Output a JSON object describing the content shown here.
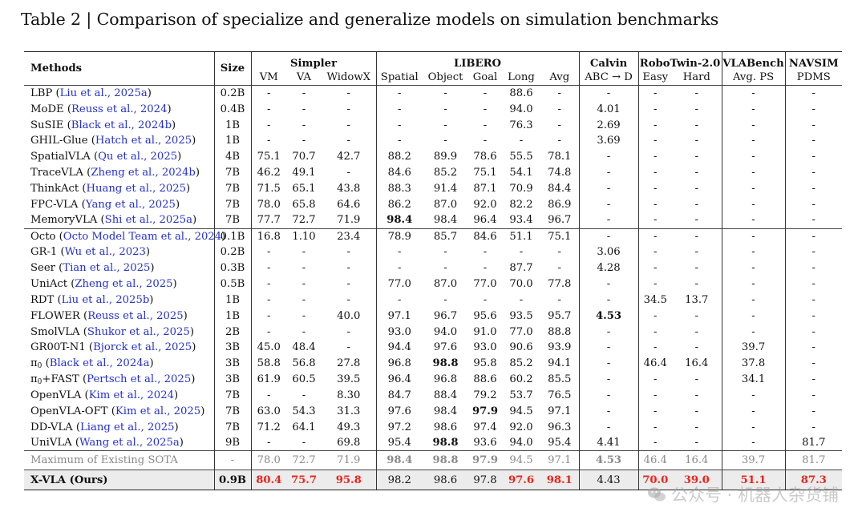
{
  "caption": "Table 2 | Comparison of specialize and generalize models on simulation benchmarks",
  "watermark": "公众号 · 机器人杂货铺",
  "header": {
    "methods": "Methods",
    "size": "Size",
    "groups": [
      "Simpler",
      "LIBERO",
      "Calvin",
      "RoboTwin-2.0",
      "VLABench",
      "NAVSIM"
    ],
    "subcols": [
      "VM",
      "VA",
      "WidowX",
      "Spatial",
      "Object",
      "Goal",
      "Long",
      "Avg",
      "ABC → D",
      "Easy",
      "Hard",
      "Avg. PS",
      "PDMS"
    ]
  },
  "rows": [
    {
      "name": "LBP",
      "cite": "Liu et al., 2025a",
      "size": "0.2B",
      "v": [
        "-",
        "-",
        "-",
        "-",
        "-",
        "-",
        "88.6",
        "-",
        "-",
        "-",
        "-",
        "-",
        "-"
      ]
    },
    {
      "name": "MoDE",
      "cite": "Reuss et al., 2024",
      "size": "0.4B",
      "v": [
        "-",
        "-",
        "-",
        "-",
        "-",
        "-",
        "94.0",
        "-",
        "4.01",
        "-",
        "-",
        "-",
        "-"
      ]
    },
    {
      "name": "SuSIE",
      "cite": "Black et al., 2024b",
      "size": "1B",
      "v": [
        "-",
        "-",
        "-",
        "-",
        "-",
        "-",
        "76.3",
        "-",
        "2.69",
        "-",
        "-",
        "-",
        "-"
      ]
    },
    {
      "name": "GHIL-Glue",
      "cite": "Hatch et al., 2025",
      "size": "1B",
      "v": [
        "-",
        "-",
        "-",
        "-",
        "-",
        "-",
        "-",
        "-",
        "3.69",
        "-",
        "-",
        "-",
        "-"
      ]
    },
    {
      "name": "SpatialVLA",
      "cite": "Qu et al., 2025",
      "size": "4B",
      "v": [
        "75.1",
        "70.7",
        "42.7",
        "88.2",
        "89.9",
        "78.6",
        "55.5",
        "78.1",
        "-",
        "-",
        "-",
        "-",
        "-"
      ]
    },
    {
      "name": "TraceVLA",
      "cite": "Zheng et al., 2024b",
      "size": "7B",
      "v": [
        "46.2",
        "49.1",
        "-",
        "84.6",
        "85.2",
        "75.1",
        "54.1",
        "74.8",
        "-",
        "-",
        "-",
        "-",
        "-"
      ]
    },
    {
      "name": "ThinkAct",
      "cite": "Huang et al., 2025",
      "size": "7B",
      "v": [
        "71.5",
        "65.1",
        "43.8",
        "88.3",
        "91.4",
        "87.1",
        "70.9",
        "84.4",
        "-",
        "-",
        "-",
        "-",
        "-"
      ]
    },
    {
      "name": "FPC-VLA",
      "cite": "Yang et al., 2025",
      "size": "7B",
      "v": [
        "78.0",
        "65.8",
        "64.6",
        "86.2",
        "87.0",
        "92.0",
        "82.2",
        "86.9",
        "-",
        "-",
        "-",
        "-",
        "-"
      ]
    },
    {
      "name": "MemoryVLA",
      "cite": "Shi et al., 2025a",
      "size": "7B",
      "v": [
        "77.7",
        "72.7",
        "71.9",
        "98.4",
        "98.4",
        "96.4",
        "93.4",
        "96.7",
        "-",
        "-",
        "-",
        "-",
        "-"
      ],
      "bold": [
        3
      ]
    },
    {
      "name": "Octo",
      "cite": "Octo Model Team et al., 2024",
      "size": "0.1B",
      "v": [
        "16.8",
        "1.10",
        "23.4",
        "78.9",
        "85.7",
        "84.6",
        "51.1",
        "75.1",
        "-",
        "-",
        "-",
        "-",
        "-"
      ]
    },
    {
      "name": "GR-1",
      "cite": "Wu et al., 2023",
      "size": "0.2B",
      "v": [
        "-",
        "-",
        "-",
        "-",
        "-",
        "-",
        "-",
        "-",
        "3.06",
        "-",
        "-",
        "-",
        "-"
      ]
    },
    {
      "name": "Seer",
      "cite": "Tian et al., 2025",
      "size": "0.3B",
      "v": [
        "-",
        "-",
        "-",
        "-",
        "-",
        "-",
        "87.7",
        "-",
        "4.28",
        "-",
        "-",
        "-",
        "-"
      ]
    },
    {
      "name": "UniAct",
      "cite": "Zheng et al., 2025",
      "size": "0.5B",
      "v": [
        "-",
        "-",
        "-",
        "77.0",
        "87.0",
        "77.0",
        "70.0",
        "77.8",
        "-",
        "-",
        "-",
        "-",
        "-"
      ]
    },
    {
      "name": "RDT",
      "cite": "Liu et al., 2025b",
      "size": "1B",
      "v": [
        "-",
        "-",
        "-",
        "-",
        "-",
        "-",
        "-",
        "-",
        "-",
        "34.5",
        "13.7",
        "-",
        "-"
      ]
    },
    {
      "name": "FLOWER",
      "cite": "Reuss et al., 2025",
      "size": "1B",
      "v": [
        "-",
        "-",
        "40.0",
        "97.1",
        "96.7",
        "95.6",
        "93.5",
        "95.7",
        "4.53",
        "-",
        "-",
        "-",
        "-"
      ],
      "bold": [
        8
      ]
    },
    {
      "name": "SmolVLA",
      "cite": "Shukor et al., 2025",
      "size": "2B",
      "v": [
        "-",
        "-",
        "-",
        "93.0",
        "94.0",
        "91.0",
        "77.0",
        "88.8",
        "-",
        "-",
        "-",
        "-",
        "-"
      ]
    },
    {
      "name": "GR00T-N1",
      "cite": "Bjorck et al., 2025",
      "size": "3B",
      "v": [
        "45.0",
        "48.4",
        "-",
        "94.4",
        "97.6",
        "93.0",
        "90.6",
        "93.9",
        "-",
        "-",
        "-",
        "39.7",
        "-"
      ]
    },
    {
      "name": "π",
      "sub": "0",
      "cite": "Black et al., 2024a",
      "size": "3B",
      "v": [
        "58.8",
        "56.8",
        "27.8",
        "96.8",
        "98.8",
        "95.8",
        "85.2",
        "94.1",
        "-",
        "46.4",
        "16.4",
        "37.8",
        "-"
      ],
      "bold": [
        4
      ]
    },
    {
      "name": "π",
      "sub": "0",
      "suffix": "+FAST",
      "cite": "Pertsch et al., 2025",
      "size": "3B",
      "v": [
        "61.9",
        "60.5",
        "39.5",
        "96.4",
        "96.8",
        "88.6",
        "60.2",
        "85.5",
        "-",
        "-",
        "-",
        "34.1",
        "-"
      ]
    },
    {
      "name": "OpenVLA",
      "cite": "Kim et al., 2024",
      "size": "7B",
      "v": [
        "-",
        "-",
        "8.30",
        "84.7",
        "88.4",
        "79.2",
        "53.7",
        "76.5",
        "-",
        "-",
        "-",
        "-",
        "-"
      ]
    },
    {
      "name": "OpenVLA-OFT",
      "cite": "Kim et al., 2025",
      "size": "7B",
      "v": [
        "63.0",
        "54.3",
        "31.3",
        "97.6",
        "98.4",
        "97.9",
        "94.5",
        "97.1",
        "-",
        "-",
        "-",
        "-",
        "-"
      ],
      "bold": [
        5
      ]
    },
    {
      "name": "DD-VLA",
      "cite": "Liang et al., 2025",
      "size": "7B",
      "v": [
        "71.2",
        "64.1",
        "49.3",
        "97.2",
        "98.6",
        "97.4",
        "92.0",
        "96.3",
        "-",
        "-",
        "-",
        "-",
        "-"
      ]
    },
    {
      "name": "UniVLA",
      "cite": "Wang et al., 2025a",
      "size": "9B",
      "v": [
        "-",
        "-",
        "69.8",
        "95.4",
        "98.8",
        "93.6",
        "94.0",
        "95.4",
        "4.41",
        "-",
        "-",
        "-",
        "81.7"
      ],
      "bold": [
        4
      ]
    }
  ],
  "sota": {
    "name": "Maximum of Existing SOTA",
    "size": "-",
    "v": [
      "78.0",
      "72.7",
      "71.9",
      "98.4",
      "98.8",
      "97.9",
      "94.5",
      "97.1",
      "4.53",
      "46.4",
      "16.4",
      "39.7",
      "81.7"
    ],
    "bold": [
      3,
      4,
      5,
      8
    ]
  },
  "ours": {
    "name": "X-VLA (Ours)",
    "size": "0.9B",
    "v": [
      "80.4",
      "75.7",
      "95.8",
      "98.2",
      "98.6",
      "97.8",
      "97.6",
      "98.1",
      "4.43",
      "70.0",
      "39.0",
      "51.1",
      "87.3"
    ],
    "red": [
      0,
      1,
      2,
      6,
      7,
      9,
      10,
      11,
      12
    ]
  },
  "colors": {
    "citation": "#2530c8",
    "highlight_red": "#e8241c",
    "sota_gray": "#8a8a8a",
    "ours_bg": "#ececec"
  }
}
